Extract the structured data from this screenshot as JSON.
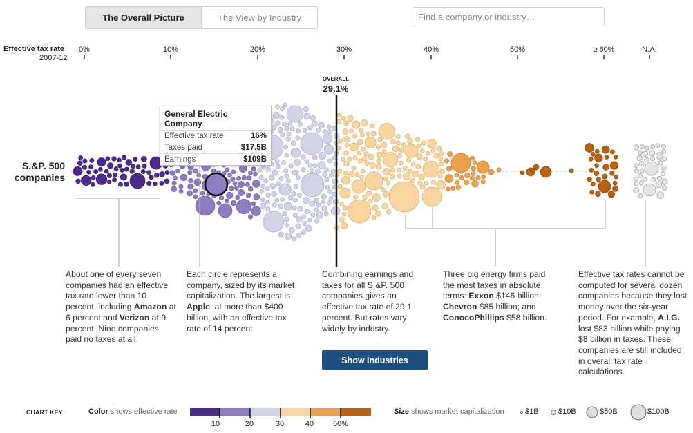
{
  "tabs": [
    {
      "label": "The Overall Picture",
      "active": true
    },
    {
      "label": "The View by Industry",
      "active": false
    }
  ],
  "search": {
    "placeholder": "Find a company or industry…"
  },
  "axis": {
    "title": "Effective tax rate",
    "subtitle": "2007-12",
    "ticks": [
      "0%",
      "10%",
      "20%",
      "30%",
      "40%",
      "50%",
      "≥ 60%",
      "N.A."
    ]
  },
  "overall": {
    "label": "OVERALL",
    "value": "29.1%"
  },
  "group_label": {
    "line1": "S.&P. 500",
    "line2": "companies"
  },
  "tooltip": {
    "title": "General Electric Company",
    "rows": [
      {
        "label": "Effective tax rate",
        "value": "16%"
      },
      {
        "label": "Taxes paid",
        "value": "$17.5B"
      },
      {
        "label": "Earnings",
        "value": "$109B"
      }
    ]
  },
  "annotations": {
    "a1": {
      "t1": "About one of every seven companies had an effective tax rate lower than 10 percent, including ",
      "b1": "Amazon",
      "t2": " at 6 percent and ",
      "b2": "Verizon",
      "t3": " at 9 percent. Nine companies paid no taxes at all."
    },
    "a2": {
      "t1": "Each circle represents a company, sized by its market capitalization. The largest is ",
      "b1": "Apple",
      "t2": ", at more than $400 billion, with an effective tax rate of 14 percent."
    },
    "a3": {
      "t1": "Combining earnings and taxes for all S.&P. 500 companies gives an effective tax rate of 29.1 percent. But rates vary widely by industry."
    },
    "a4": {
      "t1": "Three big energy firms paid the most taxes in absolute terms: ",
      "b1": "Exxon",
      "t2": " $146 billion; ",
      "b2": "Chevron",
      "t3": " $85 billion; and ",
      "b3": "ConocoPhillips",
      "t4": " $58 billion."
    },
    "a5": {
      "t1": "Effective tax rates cannot be computed for several dozen companies because they lost money over the six-year period. For example, ",
      "b1": "A.I.G.",
      "t2": " lost $83 billion while paying $8 billion in taxes. These companies are still included in overall tax rate calculations."
    }
  },
  "button": {
    "label": "Show Industries"
  },
  "key": {
    "title": "CHART KEY",
    "color_bold": "Color",
    "color_text": " shows effective rate",
    "color_ticks": [
      "10",
      "20",
      "30",
      "40",
      "50%"
    ],
    "size_bold": "Size",
    "size_text": " shows market capitalization",
    "sizes": [
      "$1B",
      "$10B",
      "$50B",
      "$100B"
    ]
  },
  "colors": {
    "purple_dark": "#4b2a8c",
    "purple_mid": "#8d7cc0",
    "lavender": "#d3d3e8",
    "peach": "#f8d59f",
    "orange": "#e9a14d",
    "brown": "#b8620f",
    "gray": "#e4e4e4",
    "button": "#1d4e7e"
  },
  "chart_data": {
    "type": "scatter",
    "title": "Effective tax rate, 2007-12",
    "xlabel": "Effective tax rate",
    "xlim": [
      0,
      60
    ],
    "overall_rate": 29.1,
    "tick_labels": [
      "0%",
      "10%",
      "20%",
      "30%",
      "40%",
      "50%",
      "≥ 60%",
      "N.A."
    ],
    "bands": [
      {
        "range": [
          0,
          10
        ],
        "color": "#4b2a8c"
      },
      {
        "range": [
          10,
          20
        ],
        "color": "#8d7cc0"
      },
      {
        "range": [
          20,
          30
        ],
        "color": "#d3d3e8"
      },
      {
        "range": [
          30,
          40
        ],
        "color": "#f8d59f"
      },
      {
        "range": [
          40,
          50
        ],
        "color": "#e9a14d"
      },
      {
        "range": [
          50,
          60
        ],
        "color": "#b8620f"
      },
      {
        "range": "N.A.",
        "color": "#e4e4e4"
      }
    ],
    "highlighted": {
      "name": "General Electric Company",
      "rate": 16,
      "taxes_paid_B": 17.5,
      "earnings_B": 109
    },
    "callouts": [
      {
        "name": "Amazon",
        "rate": 6
      },
      {
        "name": "Verizon",
        "rate": 9
      },
      {
        "name": "Apple",
        "rate": 14,
        "market_cap_B": 400
      },
      {
        "name": "Exxon",
        "taxes_paid_B": 146
      },
      {
        "name": "Chevron",
        "taxes_paid_B": 85
      },
      {
        "name": "ConocoPhillips",
        "taxes_paid_B": 58
      },
      {
        "name": "A.I.G.",
        "loss_B": 83,
        "taxes_paid_B": 8
      }
    ]
  }
}
